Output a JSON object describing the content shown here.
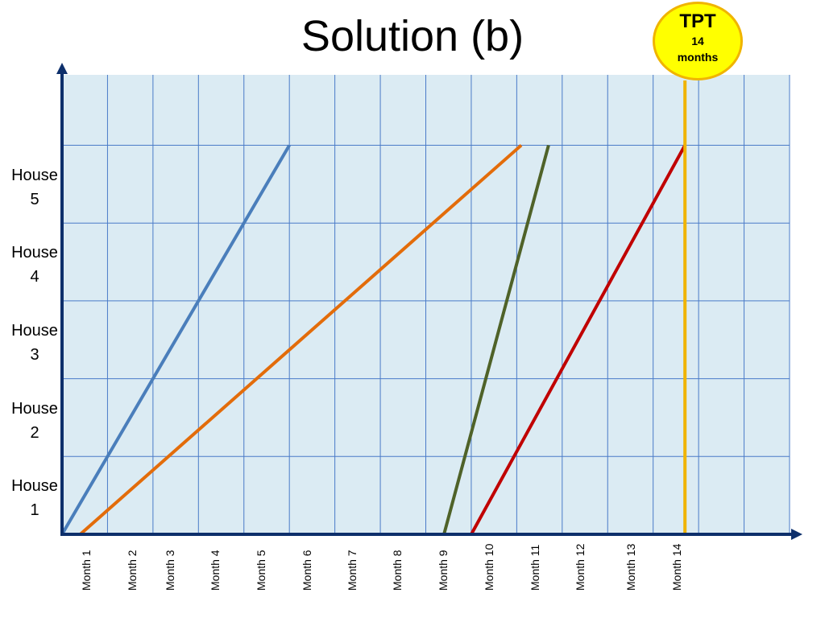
{
  "title": "Solution (b)",
  "badge": {
    "title": "TPT",
    "line1": "14",
    "line2": "months"
  },
  "colors": {
    "plot_bg": "#dbebf3",
    "grid": "#4a7bc8",
    "axis": "#0d2f6b",
    "tpt_line": "#f0b400",
    "badge_fill": "#ffff00"
  },
  "chart_data": {
    "type": "line",
    "title": "Solution (b)",
    "x_tick_labels": [
      "Month 1",
      "Month 2",
      "Month 3",
      "Month 4",
      "Month 5",
      "Month 6",
      "Month 7",
      "Month 8",
      "Month 9",
      "Month 10",
      "Month 11",
      "Month 12",
      "Month 13",
      "Month 14"
    ],
    "y_tick_labels": [
      {
        "line1": "House",
        "line2": "1"
      },
      {
        "line1": "House",
        "line2": "2"
      },
      {
        "line1": "House",
        "line2": "3"
      },
      {
        "line1": "House",
        "line2": "4"
      },
      {
        "line1": "House",
        "line2": "5"
      }
    ],
    "xlim": [
      0,
      16
    ],
    "ylim": [
      0,
      6
    ],
    "grid": true,
    "series": [
      {
        "color": "#4a7ebb",
        "points": [
          [
            0,
            0
          ],
          [
            5,
            5
          ]
        ]
      },
      {
        "color": "#e36c0a",
        "points": [
          [
            0.4,
            0
          ],
          [
            10.1,
            5
          ]
        ]
      },
      {
        "color": "#4f6228",
        "points": [
          [
            8.4,
            0
          ],
          [
            10.7,
            5
          ]
        ]
      },
      {
        "color": "#c00000",
        "points": [
          [
            9.0,
            0
          ],
          [
            13.7,
            5
          ]
        ]
      }
    ],
    "reference_line": {
      "x": 13.7,
      "label": "TPT 14 months",
      "color": "#f0b400"
    }
  }
}
